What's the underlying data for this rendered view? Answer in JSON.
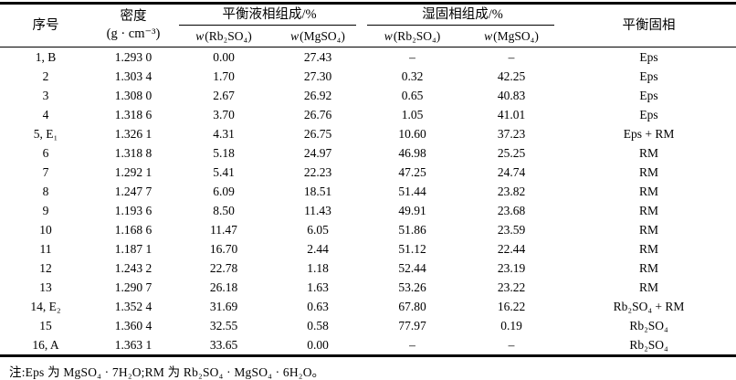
{
  "table": {
    "headers": {
      "serial": "序号",
      "density_line1": "密度",
      "density_line2": "(g · cm⁻³)",
      "liquid_group": "平衡液相组成/%",
      "wet_group": "湿固相组成/%",
      "solid": "平衡固相",
      "w_prefix": "w",
      "rb_formula": "(Rb₂SO₄)",
      "mg_formula": "(MgSO₄)"
    },
    "column_keys": [
      "serial",
      "density",
      "liquid-rb2so4",
      "liquid-mgso4",
      "wet-rb2so4",
      "wet-mgso4",
      "equilibrium-solid-phase"
    ],
    "rows": [
      [
        "1, B",
        "1.293 0",
        "0.00",
        "27.43",
        "–",
        "–",
        "Eps"
      ],
      [
        "2",
        "1.303 4",
        "1.70",
        "27.30",
        "0.32",
        "42.25",
        "Eps"
      ],
      [
        "3",
        "1.308 0",
        "2.67",
        "26.92",
        "0.65",
        "40.83",
        "Eps"
      ],
      [
        "4",
        "1.318 6",
        "3.70",
        "26.76",
        "1.05",
        "41.01",
        "Eps"
      ],
      [
        "5, E₁",
        "1.326 1",
        "4.31",
        "26.75",
        "10.60",
        "37.23",
        "Eps + RM"
      ],
      [
        "6",
        "1.318 8",
        "5.18",
        "24.97",
        "46.98",
        "25.25",
        "RM"
      ],
      [
        "7",
        "1.292 1",
        "5.41",
        "22.23",
        "47.25",
        "24.74",
        "RM"
      ],
      [
        "8",
        "1.247 7",
        "6.09",
        "18.51",
        "51.44",
        "23.82",
        "RM"
      ],
      [
        "9",
        "1.193 6",
        "8.50",
        "11.43",
        "49.91",
        "23.68",
        "RM"
      ],
      [
        "10",
        "1.168 6",
        "11.47",
        "6.05",
        "51.86",
        "23.59",
        "RM"
      ],
      [
        "11",
        "1.187 1",
        "16.70",
        "2.44",
        "51.12",
        "22.44",
        "RM"
      ],
      [
        "12",
        "1.243 2",
        "22.78",
        "1.18",
        "52.44",
        "23.19",
        "RM"
      ],
      [
        "13",
        "1.290 7",
        "26.18",
        "1.63",
        "53.26",
        "23.22",
        "RM"
      ],
      [
        "14, E₂",
        "1.352 4",
        "31.69",
        "0.63",
        "67.80",
        "16.22",
        "Rb₂SO₄ + RM"
      ],
      [
        "15",
        "1.360 4",
        "32.55",
        "0.58",
        "77.97",
        "0.19",
        "Rb₂SO₄"
      ],
      [
        "16, A",
        "1.363 1",
        "33.65",
        "0.00",
        "–",
        "–",
        "Rb₂SO₄"
      ]
    ]
  },
  "footnote": "注:Eps 为 MgSO₄ · 7H₂O;RM 为 Rb₂SO₄ · MgSO₄ · 6H₂O。"
}
